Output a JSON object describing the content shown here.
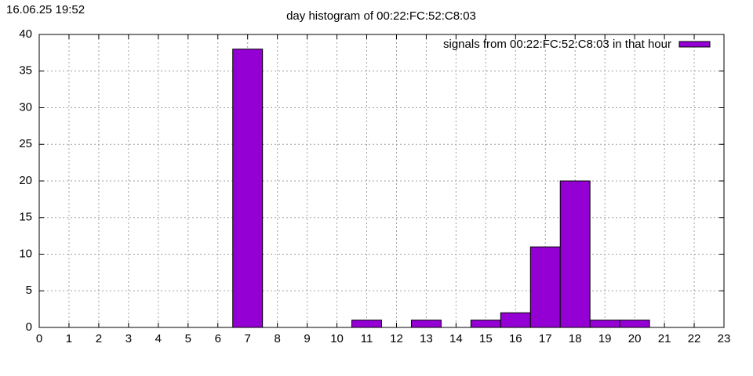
{
  "chart_data": {
    "type": "bar",
    "timestamp": "16.06.25 19:52",
    "title": "day histogram of 00:22:FC:52:C8:03",
    "x": [
      7,
      11,
      13,
      15,
      16,
      17,
      18,
      19,
      20
    ],
    "series": [
      {
        "name": "signals from 00:22:FC:52:C8:03 in that hour",
        "color": "#9400d3",
        "values": [
          38,
          1,
          1,
          1,
          2,
          11,
          20,
          1,
          1
        ]
      }
    ],
    "bar_width": 1,
    "xlim": [
      0,
      23
    ],
    "xticks": [
      0,
      1,
      2,
      3,
      4,
      5,
      6,
      7,
      8,
      9,
      10,
      11,
      12,
      13,
      14,
      15,
      16,
      17,
      18,
      19,
      20,
      21,
      22,
      23
    ],
    "ylim": [
      0,
      40
    ],
    "yticks": [
      0,
      5,
      10,
      15,
      20,
      25,
      30,
      35,
      40
    ],
    "grid": true,
    "legend": "top-right"
  }
}
